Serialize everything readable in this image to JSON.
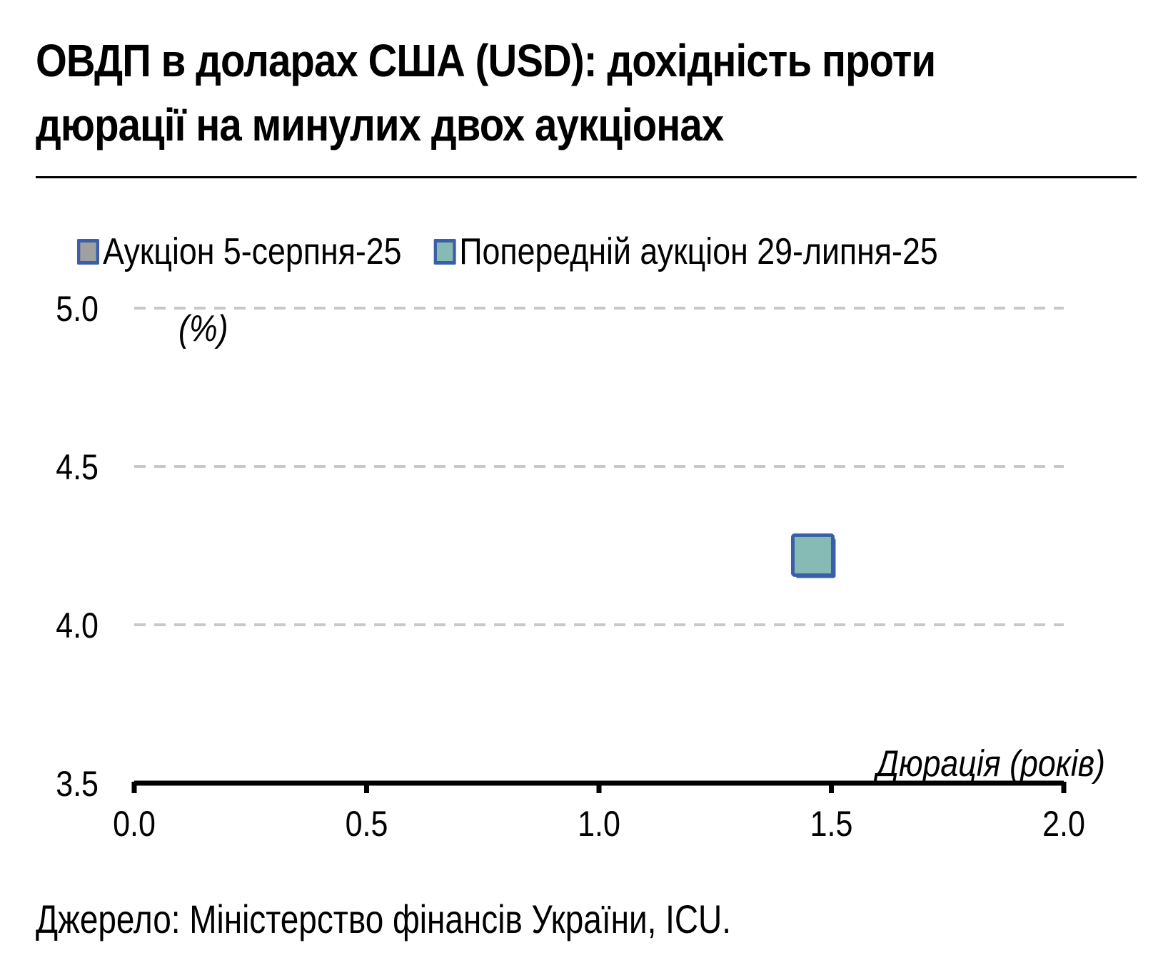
{
  "title": "ОВДП в доларах США (USD): дохідність проти дюрації на минулих двох аукціонах",
  "source": "Джерело: Міністерство фінансів України, ICU.",
  "chart_data": {
    "type": "scatter",
    "ylabel": "(%)",
    "xlabel": "Дюрація (років)",
    "xlim": [
      0.0,
      2.0
    ],
    "ylim": [
      3.5,
      5.0
    ],
    "xticks": [
      "0.0",
      "0.5",
      "1.0",
      "1.5",
      "2.0"
    ],
    "yticks": [
      "3.5",
      "4.0",
      "4.5",
      "5.0"
    ],
    "grid": "horizontal dashed",
    "legend_position": "top",
    "series": [
      {
        "name": "Аукціон 5-серпня-25",
        "color": "#a0a0a0",
        "border": "#3a5ea8",
        "points": []
      },
      {
        "name": "Попередній аукціон 29-липня-25",
        "color": "#86bab4",
        "border": "#3a5ea8",
        "points": [
          {
            "x": 1.46,
            "y": 4.22
          }
        ]
      }
    ]
  }
}
